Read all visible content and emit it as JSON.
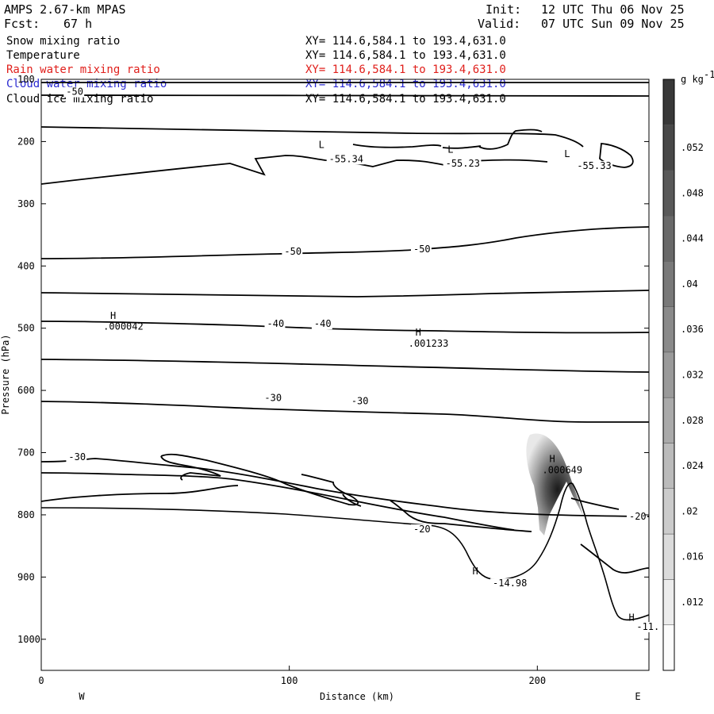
{
  "header": {
    "model": "AMPS 2.67-km MPAS",
    "forecast_label": "Fcst:",
    "forecast_hours": "67 h",
    "init_label": "Init:",
    "init_time": "12 UTC Thu 06 Nov 25",
    "valid_label": "Valid:",
    "valid_time": "07 UTC Sun 09 Nov 25"
  },
  "variables": [
    {
      "name": "Snow mixing ratio",
      "xy": "XY= 114.6,584.1 to 193.4,631.0",
      "color": "#000000"
    },
    {
      "name": "Temperature",
      "xy": "XY= 114.6,584.1 to 193.4,631.0",
      "color": "#000000"
    },
    {
      "name": "Rain water mixing ratio",
      "xy": "XY= 114.6,584.1 to 193.4,631.0",
      "color": "#e0201c"
    },
    {
      "name": "Cloud water mixing ratio",
      "xy": "XY= 114.6,584.1 to 193.4,631.0",
      "color": "#2a2ad0"
    },
    {
      "name": "Cloud ice mixing ratio",
      "xy": "XY= 114.6,584.1 to 193.4,631.0",
      "color": "#000000"
    }
  ],
  "chart_data": {
    "type": "contour-cross-section",
    "xlabel": "Distance (km)",
    "ylabel": "Pressure (hPa)",
    "xlim": [
      0,
      245
    ],
    "ylim": [
      1050,
      100
    ],
    "x_ticks": [
      0,
      100,
      200
    ],
    "y_ticks": [
      100,
      200,
      300,
      400,
      500,
      600,
      700,
      800,
      900,
      1000
    ],
    "west_label": "W",
    "east_label": "E",
    "colorbar": {
      "units": "g kg",
      "units_exp": "-1",
      "ticks": [
        ".012",
        ".016",
        ".02",
        ".024",
        ".028",
        ".032",
        ".036",
        ".04",
        ".044",
        ".048",
        ".052"
      ],
      "levels": [
        0.008,
        0.012,
        0.016,
        0.02,
        0.024,
        0.028,
        0.032,
        0.036,
        0.04,
        0.044,
        0.048,
        0.052,
        0.056
      ]
    },
    "isotherm_labels": [
      {
        "text": "-50",
        "x": 10,
        "y": 125
      },
      {
        "text": "-55.34",
        "x": 116,
        "y": 233
      },
      {
        "text": "-55.23",
        "x": 163,
        "y": 240
      },
      {
        "text": "-55.33",
        "x": 216,
        "y": 244
      },
      {
        "text": "-50",
        "x": 98,
        "y": 382
      },
      {
        "text": "-50",
        "x": 150,
        "y": 378
      },
      {
        "text": "-40",
        "x": 91,
        "y": 498
      },
      {
        "text": "-40",
        "x": 110,
        "y": 498
      },
      {
        "text": "-30",
        "x": 90,
        "y": 617
      },
      {
        "text": "-30",
        "x": 125,
        "y": 622
      },
      {
        "text": "-30",
        "x": 11,
        "y": 712
      },
      {
        "text": "-20",
        "x": 150,
        "y": 828
      },
      {
        "text": "-20",
        "x": 237,
        "y": 808
      },
      {
        "text": "-14.98",
        "x": 182,
        "y": 915
      },
      {
        "text": "-11.",
        "x": 240,
        "y": 985
      }
    ],
    "extrema_markers": [
      {
        "text": "L",
        "x": 113,
        "y": 210
      },
      {
        "text": "L",
        "x": 165,
        "y": 218
      },
      {
        "text": "L",
        "x": 212,
        "y": 225
      },
      {
        "text": "H",
        "x": 29,
        "y": 485
      },
      {
        "text": "H",
        "x": 152,
        "y": 512
      },
      {
        "text": "H",
        "x": 206,
        "y": 715
      },
      {
        "text": "H",
        "x": 175,
        "y": 896
      },
      {
        "text": "H",
        "x": 238,
        "y": 970
      }
    ],
    "extrema_values": [
      {
        "text": ".000042",
        "x": 25,
        "y": 502
      },
      {
        "text": ".001233",
        "x": 148,
        "y": 530
      },
      {
        "text": ".000649",
        "x": 202,
        "y": 733
      }
    ]
  }
}
